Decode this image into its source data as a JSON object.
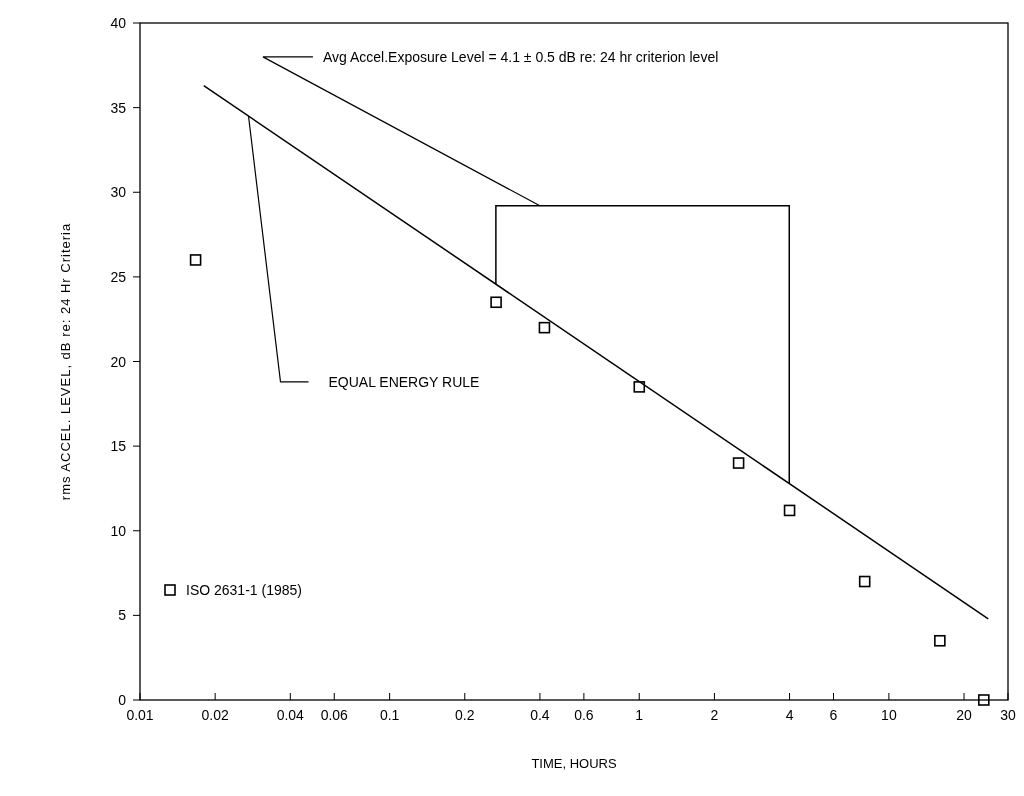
{
  "chart_data": {
    "type": "scatter",
    "xlabel": "TIME, HOURS",
    "ylabel": "rms ACCEL. LEVEL, dB re: 24 Hr Criteria",
    "log": "x",
    "xlim": [
      0.01,
      30
    ],
    "ylim": [
      0,
      40
    ],
    "xticks": [
      0.01,
      0.02,
      0.04,
      0.06,
      0.1,
      0.2,
      0.4,
      0.6,
      1,
      2,
      4,
      6,
      10,
      20,
      30
    ],
    "yticks": [
      0,
      5,
      10,
      15,
      20,
      25,
      30,
      35,
      40
    ],
    "grid": false,
    "legend": "bottom left",
    "marker": "square",
    "series": [
      {
        "name": "ISO 2631-1 (1985)",
        "color": "#000000",
        "x": [
          0.0167,
          0.267,
          0.417,
          1,
          2.5,
          4,
          8,
          16,
          24
        ],
        "values": [
          26,
          23.5,
          22,
          18.5,
          14,
          11.2,
          7,
          3.5,
          0
        ]
      },
      {
        "type": "line",
        "color": "#000000",
        "line_style": "solid",
        "marker": "none",
        "x": [
          0.018,
          25
        ],
        "values": [
          36.3,
          4.8
        ]
      }
    ],
    "annotations": [
      "Avg Accel.Exposure Level = 4.1 ± 0.5 dB re: 24 hr criterion level",
      "EQUAL ENERGY RULE"
    ]
  }
}
